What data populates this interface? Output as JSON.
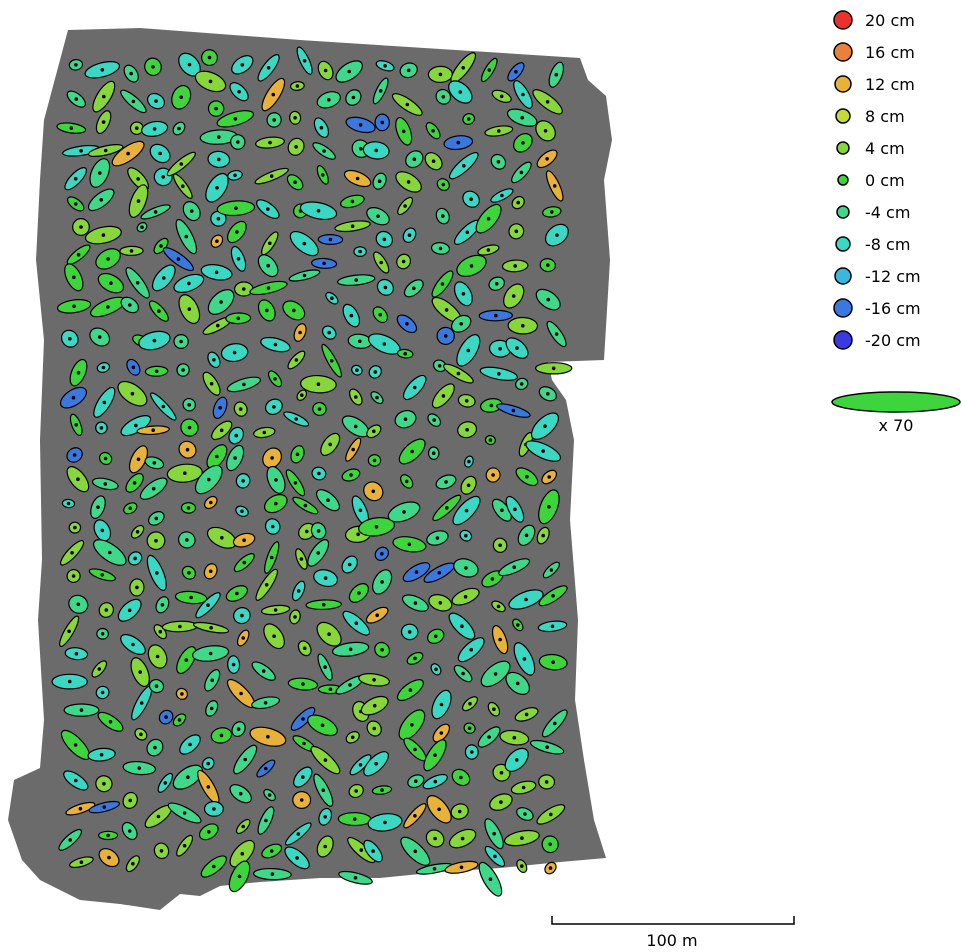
{
  "chart_data": {
    "type": "scatter",
    "title": "",
    "description_units": "cm",
    "colors": {
      "background": "#ffffff",
      "orthomosaic": "#6b6b6b",
      "ellipse_stroke": "#000000"
    },
    "legend": {
      "entries": [
        {
          "label": "20 cm",
          "value": 20,
          "color": "#e8322c"
        },
        {
          "label": "16 cm",
          "value": 16,
          "color": "#e9813a"
        },
        {
          "label": "12 cm",
          "value": 12,
          "color": "#e8b23a"
        },
        {
          "label": "8 cm",
          "value": 8,
          "color": "#c4db3a"
        },
        {
          "label": "4 cm",
          "value": 4,
          "color": "#86d63c"
        },
        {
          "label": "0 cm",
          "value": 0,
          "color": "#3ed43c"
        },
        {
          "label": "-4 cm",
          "value": -4,
          "color": "#3fd88a"
        },
        {
          "label": "-8 cm",
          "value": -8,
          "color": "#3ad8c2"
        },
        {
          "label": "-12 cm",
          "value": -12,
          "color": "#3bb6e0"
        },
        {
          "label": "-16 cm",
          "value": -16,
          "color": "#3a78de"
        },
        {
          "label": "-20 cm",
          "value": -20,
          "color": "#3a3ae0"
        }
      ],
      "placement": "top-right"
    },
    "scale_ellipse": {
      "label": "x 70",
      "color": "#3ed43c"
    },
    "scale_bar": {
      "label": "100 m",
      "length_m": 100
    }
  }
}
